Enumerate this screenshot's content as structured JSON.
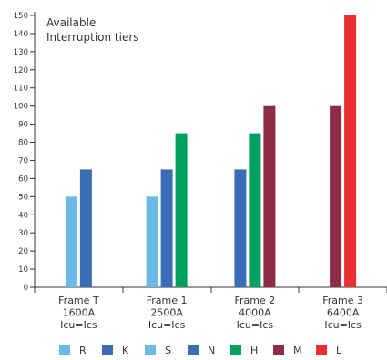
{
  "chart_data": {
    "type": "bar",
    "title_lines": [
      "Available",
      "Interruption tiers"
    ],
    "categories": [
      {
        "lines": [
          "Frame T",
          "1600A",
          "Icu=Ics"
        ]
      },
      {
        "lines": [
          "Frame 1",
          "2500A",
          "Icu=Ics"
        ]
      },
      {
        "lines": [
          "Frame 2",
          "4000A",
          "Icu=Ics"
        ]
      },
      {
        "lines": [
          "Frame 3",
          "6400A",
          "Icu=Ics"
        ]
      }
    ],
    "ylim": [
      0,
      150
    ],
    "yticks": [
      0,
      10,
      20,
      30,
      40,
      50,
      60,
      70,
      80,
      90,
      100,
      110,
      120,
      130,
      140,
      150
    ],
    "series": [
      {
        "name": "R",
        "color": "#6cb8e6"
      },
      {
        "name": "K",
        "color": "#3a6db5"
      },
      {
        "name": "S",
        "color": "#6cb8e6"
      },
      {
        "name": "N",
        "color": "#3a6db5"
      },
      {
        "name": "H",
        "color": "#00a160"
      },
      {
        "name": "M",
        "color": "#8f2c45"
      },
      {
        "name": "L",
        "color": "#e8312e"
      }
    ],
    "bars": [
      {
        "category": 0,
        "series": "R",
        "value": 50
      },
      {
        "category": 0,
        "series": "K",
        "value": 65
      },
      {
        "category": 1,
        "series": "S",
        "value": 50
      },
      {
        "category": 1,
        "series": "N",
        "value": 65
      },
      {
        "category": 1,
        "series": "H",
        "value": 85
      },
      {
        "category": 2,
        "series": "N",
        "value": 65
      },
      {
        "category": 2,
        "series": "H",
        "value": 85
      },
      {
        "category": 2,
        "series": "M",
        "value": 100
      },
      {
        "category": 3,
        "series": "M",
        "value": 100
      },
      {
        "category": 3,
        "series": "L",
        "value": 150
      }
    ],
    "grid": false,
    "legend_position": "bottom"
  }
}
